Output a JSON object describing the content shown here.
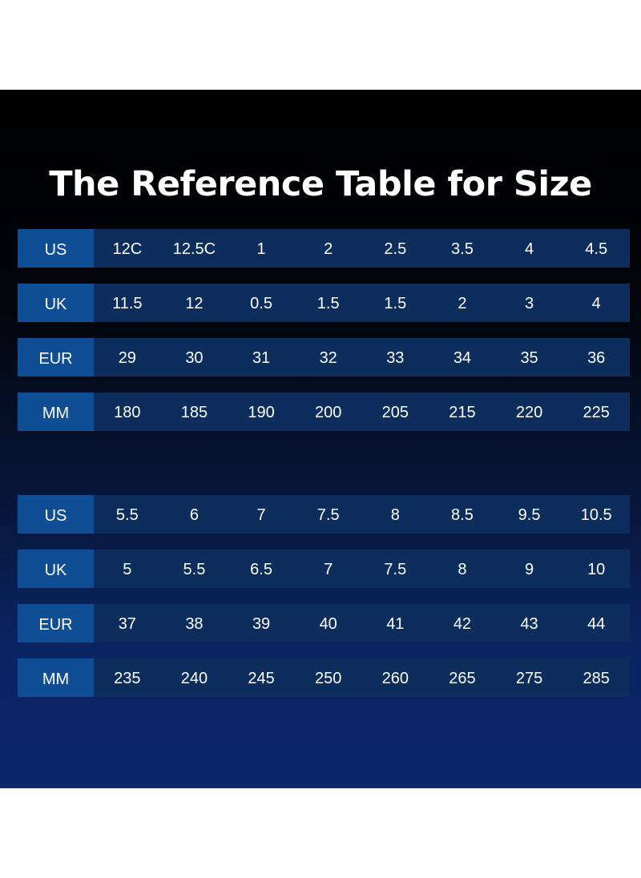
{
  "title": "The Reference Table for Size",
  "tables": [
    {
      "rows": [
        {
          "label": "US",
          "values": [
            "12C",
            "12.5C",
            "1",
            "2",
            "2.5",
            "3.5",
            "4",
            "4.5"
          ]
        },
        {
          "label": "UK",
          "values": [
            "11.5",
            "12",
            "0.5",
            "1.5",
            "1.5",
            "2",
            "3",
            "4"
          ]
        },
        {
          "label": "EUR",
          "values": [
            "29",
            "30",
            "31",
            "32",
            "33",
            "34",
            "35",
            "36"
          ]
        },
        {
          "label": "MM",
          "values": [
            "180",
            "185",
            "190",
            "200",
            "205",
            "215",
            "220",
            "225"
          ]
        }
      ]
    },
    {
      "rows": [
        {
          "label": "US",
          "values": [
            "5.5",
            "6",
            "7",
            "7.5",
            "8",
            "8.5",
            "9.5",
            "10.5"
          ]
        },
        {
          "label": "UK",
          "values": [
            "5",
            "5.5",
            "6.5",
            "7",
            "7.5",
            "8",
            "9",
            "10"
          ]
        },
        {
          "label": "EUR",
          "values": [
            "37",
            "38",
            "39",
            "40",
            "41",
            "42",
            "43",
            "44"
          ]
        },
        {
          "label": "MM",
          "values": [
            "235",
            "240",
            "245",
            "250",
            "260",
            "265",
            "275",
            "285"
          ]
        }
      ]
    }
  ]
}
